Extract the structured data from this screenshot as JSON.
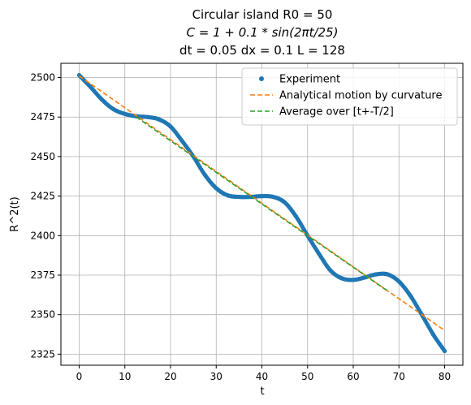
{
  "chart_data": {
    "type": "scatter",
    "title_lines": [
      "Circular island R0 = 50",
      "C = 1 + 0.1 * sin(2πt/25)",
      "dt = 0.05 dx = 0.1 L = 128"
    ],
    "xlabel": "t",
    "ylabel": "R^2(t)",
    "xlim": [
      -4,
      84
    ],
    "ylim": [
      2318,
      2509
    ],
    "x_ticks": [
      0,
      10,
      20,
      30,
      40,
      50,
      60,
      70,
      80
    ],
    "y_ticks": [
      2325,
      2350,
      2375,
      2400,
      2425,
      2450,
      2475,
      2500
    ],
    "grid": true,
    "legend_position": "top-right",
    "series": [
      {
        "name": "Experiment",
        "style": "points",
        "color": "#1f77b4",
        "x": [
          0,
          2.5,
          5,
          7.5,
          10,
          12.5,
          15,
          17.5,
          20,
          22.5,
          25,
          27.5,
          30,
          32.5,
          35,
          37.5,
          40,
          42.5,
          45,
          47.5,
          50,
          52.5,
          55,
          57.5,
          60,
          62.5,
          65,
          67.5,
          70,
          72.5,
          75,
          77.5,
          80
        ],
        "y": [
          2501.5,
          2494,
          2486,
          2480,
          2477,
          2475.5,
          2475,
          2473.5,
          2469,
          2460,
          2450,
          2438.5,
          2430,
          2425.5,
          2424.5,
          2424.5,
          2425,
          2424.5,
          2421,
          2412,
          2400,
          2388.5,
          2378,
          2373,
          2372,
          2373.5,
          2375.5,
          2375.5,
          2371,
          2362,
          2350,
          2337.5,
          2327
        ]
      },
      {
        "name": "Analytical motion by curvature",
        "style": "dashed",
        "color": "#ff7f0e",
        "x": [
          0,
          80
        ],
        "y": [
          2501,
          2340
        ]
      },
      {
        "name": "Average over [t+-T/2]",
        "style": "dashed",
        "color": "#2ca02c",
        "x": [
          12.5,
          67.5
        ],
        "y": [
          2475,
          2365
        ]
      }
    ]
  }
}
